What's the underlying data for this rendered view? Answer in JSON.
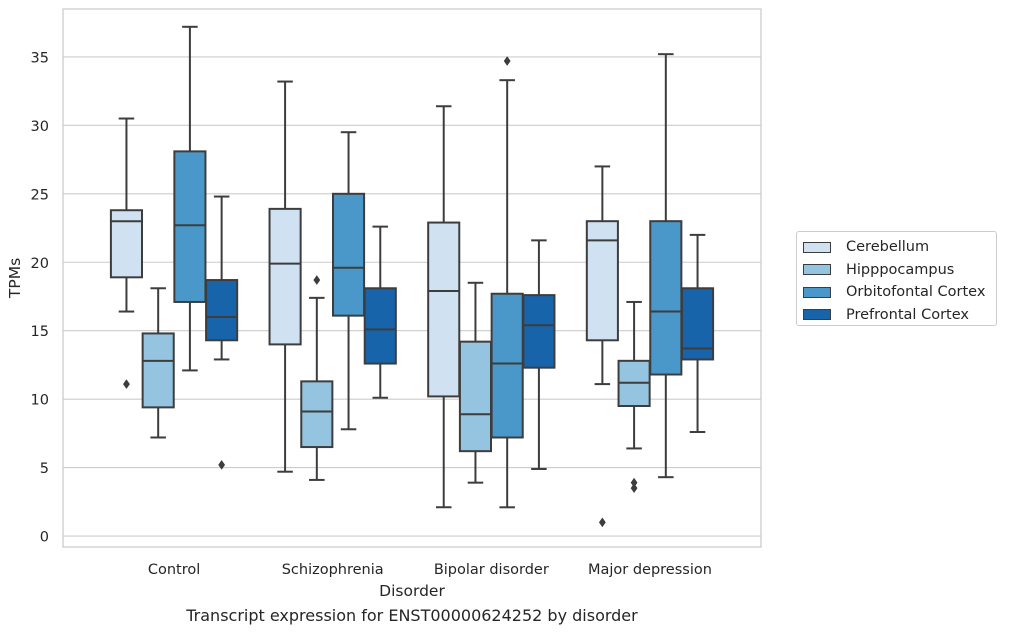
{
  "chart_data": {
    "type": "box",
    "title": "",
    "caption": "Transcript expression for ENST00000624252 by disorder",
    "xlabel": "Disorder",
    "ylabel": "TPMs",
    "ylim": [
      -0.8,
      38.5
    ],
    "yticks": [
      0,
      5,
      10,
      15,
      20,
      25,
      30,
      35
    ],
    "grid": "horizontal",
    "legend_position": "right",
    "categories": [
      "Control",
      "Schizophrenia",
      "Bipolar disorder",
      "Major depression"
    ],
    "series": [
      {
        "name": "Cerebellum",
        "color": "#d0e1f2",
        "boxes": [
          {
            "whislo": 16.4,
            "q1": 18.9,
            "med": 23.0,
            "q3": 23.8,
            "whishi": 30.5,
            "fliers": [
              11.1
            ]
          },
          {
            "whislo": 4.7,
            "q1": 14.0,
            "med": 19.9,
            "q3": 23.9,
            "whishi": 33.2,
            "fliers": []
          },
          {
            "whislo": 2.1,
            "q1": 10.2,
            "med": 17.9,
            "q3": 22.9,
            "whishi": 31.4,
            "fliers": []
          },
          {
            "whislo": 11.1,
            "q1": 14.3,
            "med": 21.6,
            "q3": 23.0,
            "whishi": 27.0,
            "fliers": [
              1.0
            ]
          }
        ]
      },
      {
        "name": "Hipppocampus",
        "color": "#94c4df",
        "boxes": [
          {
            "whislo": 7.2,
            "q1": 9.4,
            "med": 12.8,
            "q3": 14.8,
            "whishi": 18.1,
            "fliers": []
          },
          {
            "whislo": 4.1,
            "q1": 6.5,
            "med": 9.1,
            "q3": 11.3,
            "whishi": 17.4,
            "fliers": [
              18.7
            ]
          },
          {
            "whislo": 3.9,
            "q1": 6.2,
            "med": 8.9,
            "q3": 14.2,
            "whishi": 18.5,
            "fliers": []
          },
          {
            "whislo": 6.4,
            "q1": 9.5,
            "med": 11.2,
            "q3": 12.8,
            "whishi": 17.1,
            "fliers": [
              3.9,
              3.5
            ]
          }
        ]
      },
      {
        "name": "Orbitofontal Cortex",
        "color": "#4a98c9",
        "boxes": [
          {
            "whislo": 12.1,
            "q1": 17.1,
            "med": 22.7,
            "q3": 28.1,
            "whishi": 37.2,
            "fliers": []
          },
          {
            "whislo": 7.8,
            "q1": 16.1,
            "med": 19.6,
            "q3": 25.0,
            "whishi": 29.5,
            "fliers": []
          },
          {
            "whislo": 2.1,
            "q1": 7.2,
            "med": 12.6,
            "q3": 17.7,
            "whishi": 33.3,
            "fliers": [
              34.7
            ]
          },
          {
            "whislo": 4.3,
            "q1": 11.8,
            "med": 16.4,
            "q3": 23.0,
            "whishi": 35.2,
            "fliers": []
          }
        ]
      },
      {
        "name": "Prefrontal Cortex",
        "color": "#1764ab",
        "boxes": [
          {
            "whislo": 12.9,
            "q1": 14.3,
            "med": 16.0,
            "q3": 18.7,
            "whishi": 24.8,
            "fliers": [
              5.2
            ]
          },
          {
            "whislo": 10.1,
            "q1": 12.6,
            "med": 15.1,
            "q3": 18.1,
            "whishi": 22.6,
            "fliers": []
          },
          {
            "whislo": 4.9,
            "q1": 12.3,
            "med": 15.4,
            "q3": 17.6,
            "whishi": 21.6,
            "fliers": []
          },
          {
            "whislo": 7.6,
            "q1": 12.9,
            "med": 13.7,
            "q3": 18.1,
            "whishi": 22.0,
            "fliers": []
          }
        ]
      }
    ]
  }
}
